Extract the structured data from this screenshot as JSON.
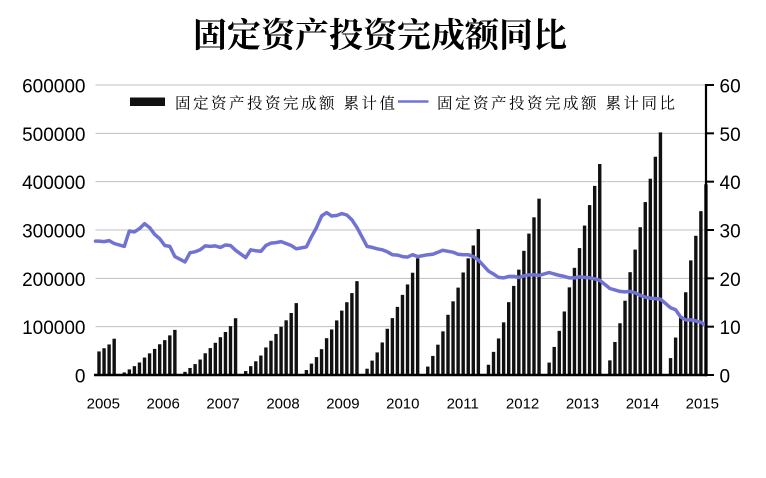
{
  "title": "固定资产投资完成额同比",
  "chart_data": {
    "type": "bar",
    "title": "固定资产投资完成额同比",
    "legend": [
      {
        "label": "固定资产投资完成额 累计值",
        "marker": "bar-swatch",
        "color": "#111111"
      },
      {
        "label": "固定资产投资完成额 累计同比",
        "marker": "line-swatch",
        "color": "#7173d2"
      }
    ],
    "left_axis": {
      "min": 0,
      "max": 600000,
      "step": 100000,
      "ticks": [
        "0",
        "100000",
        "200000",
        "300000",
        "400000",
        "500000",
        "600000"
      ]
    },
    "right_axis": {
      "min": 0,
      "max": 60,
      "step": 10,
      "ticks": [
        "0",
        "10",
        "20",
        "30",
        "40",
        "50",
        "60"
      ]
    },
    "x_tick_labels": [
      "2005",
      "2006",
      "2007",
      "2008",
      "2009",
      "2010",
      "2011",
      "2012",
      "2013",
      "2014",
      "2015"
    ],
    "grid": true,
    "colors": {
      "bar": "#111111",
      "line": "#7173d2",
      "gridline": "#c0c0c0",
      "axis": "#000000"
    },
    "monthly": [
      {
        "m": "2005-09",
        "value": 48741,
        "yoy": 27.7
      },
      {
        "m": "2005-10",
        "value": 55368,
        "yoy": 27.6
      },
      {
        "m": "2005-11",
        "value": 63196,
        "yoy": 27.8
      },
      {
        "m": "2005-12",
        "value": 75096,
        "yoy": 27.2
      },
      {
        "m": "2006-02",
        "value": 5294,
        "yoy": 26.6
      },
      {
        "m": "2006-03",
        "value": 11608,
        "yoy": 29.8
      },
      {
        "m": "2006-04",
        "value": 18317,
        "yoy": 29.6
      },
      {
        "m": "2006-05",
        "value": 25864,
        "yoy": 30.3
      },
      {
        "m": "2006-06",
        "value": 36135,
        "yoy": 31.3
      },
      {
        "m": "2006-07",
        "value": 44771,
        "yoy": 30.5
      },
      {
        "m": "2006-08",
        "value": 54027,
        "yoy": 29.1
      },
      {
        "m": "2006-09",
        "value": 63617,
        "yoy": 28.2
      },
      {
        "m": "2006-10",
        "value": 72109,
        "yoy": 26.8
      },
      {
        "m": "2006-11",
        "value": 81993,
        "yoy": 26.6
      },
      {
        "m": "2006-12",
        "value": 93369,
        "yoy": 24.5
      },
      {
        "m": "2007-02",
        "value": 6535,
        "yoy": 23.4
      },
      {
        "m": "2007-03",
        "value": 14544,
        "yoy": 25.3
      },
      {
        "m": "2007-04",
        "value": 22594,
        "yoy": 25.5
      },
      {
        "m": "2007-05",
        "value": 32045,
        "yoy": 25.9
      },
      {
        "m": "2007-06",
        "value": 44979,
        "yoy": 26.7
      },
      {
        "m": "2007-07",
        "value": 55684,
        "yoy": 26.6
      },
      {
        "m": "2007-08",
        "value": 66659,
        "yoy": 26.7
      },
      {
        "m": "2007-09",
        "value": 78247,
        "yoy": 26.4
      },
      {
        "m": "2007-10",
        "value": 88953,
        "yoy": 26.9
      },
      {
        "m": "2007-11",
        "value": 101148,
        "yoy": 26.8
      },
      {
        "m": "2007-12",
        "value": 117464,
        "yoy": 25.8
      },
      {
        "m": "2008-02",
        "value": 8121,
        "yoy": 24.3
      },
      {
        "m": "2008-03",
        "value": 18311,
        "yoy": 25.9
      },
      {
        "m": "2008-04",
        "value": 28401,
        "yoy": 25.7
      },
      {
        "m": "2008-05",
        "value": 40249,
        "yoy": 25.6
      },
      {
        "m": "2008-06",
        "value": 57033,
        "yoy": 26.8
      },
      {
        "m": "2008-07",
        "value": 70886,
        "yoy": 27.3
      },
      {
        "m": "2008-08",
        "value": 84924,
        "yoy": 27.4
      },
      {
        "m": "2008-09",
        "value": 99843,
        "yoy": 27.6
      },
      {
        "m": "2008-10",
        "value": 113148,
        "yoy": 27.2
      },
      {
        "m": "2008-11",
        "value": 128256,
        "yoy": 26.8
      },
      {
        "m": "2008-12",
        "value": 148738,
        "yoy": 26.1
      },
      {
        "m": "2009-02",
        "value": 10273,
        "yoy": 26.5
      },
      {
        "m": "2009-03",
        "value": 23548,
        "yoy": 28.6
      },
      {
        "m": "2009-04",
        "value": 37063,
        "yoy": 30.5
      },
      {
        "m": "2009-05",
        "value": 53491,
        "yoy": 32.9
      },
      {
        "m": "2009-06",
        "value": 76196,
        "yoy": 33.6
      },
      {
        "m": "2009-07",
        "value": 94208,
        "yoy": 32.9
      },
      {
        "m": "2009-08",
        "value": 112949,
        "yoy": 33.0
      },
      {
        "m": "2009-09",
        "value": 133191,
        "yoy": 33.4
      },
      {
        "m": "2009-10",
        "value": 150600,
        "yoy": 33.1
      },
      {
        "m": "2009-11",
        "value": 169426,
        "yoy": 32.1
      },
      {
        "m": "2009-12",
        "value": 194139,
        "yoy": 30.5
      },
      {
        "m": "2010-02",
        "value": 13006,
        "yoy": 26.6
      },
      {
        "m": "2010-03",
        "value": 29765,
        "yoy": 26.4
      },
      {
        "m": "2010-04",
        "value": 46736,
        "yoy": 26.1
      },
      {
        "m": "2010-05",
        "value": 67345,
        "yoy": 25.9
      },
      {
        "m": "2010-06",
        "value": 95626,
        "yoy": 25.5
      },
      {
        "m": "2010-07",
        "value": 117666,
        "yoy": 24.9
      },
      {
        "m": "2010-08",
        "value": 140960,
        "yoy": 24.8
      },
      {
        "m": "2010-09",
        "value": 165823,
        "yoy": 24.5
      },
      {
        "m": "2010-10",
        "value": 187346,
        "yoy": 24.4
      },
      {
        "m": "2010-11",
        "value": 211613,
        "yoy": 24.9
      },
      {
        "m": "2010-12",
        "value": 241415,
        "yoy": 24.5
      },
      {
        "m": "2011-02",
        "value": 17444,
        "yoy": 24.9
      },
      {
        "m": "2011-03",
        "value": 39465,
        "yoy": 25.0
      },
      {
        "m": "2011-04",
        "value": 62716,
        "yoy": 25.4
      },
      {
        "m": "2011-05",
        "value": 90255,
        "yoy": 25.8
      },
      {
        "m": "2011-06",
        "value": 124567,
        "yoy": 25.6
      },
      {
        "m": "2011-07",
        "value": 152420,
        "yoy": 25.4
      },
      {
        "m": "2011-08",
        "value": 180810,
        "yoy": 25.0
      },
      {
        "m": "2011-09",
        "value": 212107,
        "yoy": 24.9
      },
      {
        "m": "2011-10",
        "value": 241365,
        "yoy": 24.9
      },
      {
        "m": "2011-11",
        "value": 268021,
        "yoy": 24.5
      },
      {
        "m": "2011-12",
        "value": 301933,
        "yoy": 23.8
      },
      {
        "m": "2012-02",
        "value": 21189,
        "yoy": 21.5
      },
      {
        "m": "2012-03",
        "value": 47865,
        "yoy": 20.9
      },
      {
        "m": "2012-04",
        "value": 75592,
        "yoy": 20.2
      },
      {
        "m": "2012-05",
        "value": 108924,
        "yoy": 20.1
      },
      {
        "m": "2012-06",
        "value": 150710,
        "yoy": 20.4
      },
      {
        "m": "2012-07",
        "value": 184312,
        "yoy": 20.4
      },
      {
        "m": "2012-08",
        "value": 217958,
        "yoy": 20.2
      },
      {
        "m": "2012-09",
        "value": 256933,
        "yoy": 20.5
      },
      {
        "m": "2012-10",
        "value": 292542,
        "yoy": 20.7
      },
      {
        "m": "2012-11",
        "value": 326236,
        "yoy": 20.7
      },
      {
        "m": "2012-12",
        "value": 364835,
        "yoy": 20.6
      },
      {
        "m": "2013-02",
        "value": 25676,
        "yoy": 21.2
      },
      {
        "m": "2013-03",
        "value": 58092,
        "yoy": 20.9
      },
      {
        "m": "2013-04",
        "value": 91319,
        "yoy": 20.6
      },
      {
        "m": "2013-05",
        "value": 131435,
        "yoy": 20.4
      },
      {
        "m": "2013-06",
        "value": 181318,
        "yoy": 20.1
      },
      {
        "m": "2013-07",
        "value": 221722,
        "yoy": 20.1
      },
      {
        "m": "2013-08",
        "value": 262578,
        "yoy": 20.3
      },
      {
        "m": "2013-09",
        "value": 309208,
        "yoy": 20.2
      },
      {
        "m": "2013-10",
        "value": 351535,
        "yoy": 20.1
      },
      {
        "m": "2013-11",
        "value": 391283,
        "yoy": 19.9
      },
      {
        "m": "2013-12",
        "value": 436528,
        "yoy": 19.6
      },
      {
        "m": "2014-02",
        "value": 30283,
        "yoy": 17.9
      },
      {
        "m": "2014-03",
        "value": 68322,
        "yoy": 17.6
      },
      {
        "m": "2014-04",
        "value": 107078,
        "yoy": 17.3
      },
      {
        "m": "2014-05",
        "value": 153716,
        "yoy": 17.2
      },
      {
        "m": "2014-06",
        "value": 212770,
        "yoy": 17.3
      },
      {
        "m": "2014-07",
        "value": 259493,
        "yoy": 17.0
      },
      {
        "m": "2014-08",
        "value": 305786,
        "yoy": 16.5
      },
      {
        "m": "2014-09",
        "value": 357787,
        "yoy": 16.1
      },
      {
        "m": "2014-10",
        "value": 406161,
        "yoy": 15.9
      },
      {
        "m": "2014-11",
        "value": 451568,
        "yoy": 15.8
      },
      {
        "m": "2014-12",
        "value": 502005,
        "yoy": 15.7
      },
      {
        "m": "2015-02",
        "value": 34994,
        "yoy": 13.9
      },
      {
        "m": "2015-03",
        "value": 77511,
        "yoy": 13.5
      },
      {
        "m": "2015-04",
        "value": 119979,
        "yoy": 12.0
      },
      {
        "m": "2015-05",
        "value": 171245,
        "yoy": 11.4
      },
      {
        "m": "2015-06",
        "value": 237132,
        "yoy": 11.4
      },
      {
        "m": "2015-07",
        "value": 288069,
        "yoy": 11.2
      },
      {
        "m": "2015-08",
        "value": 338977,
        "yoy": 10.9
      },
      {
        "m": "2015-09",
        "value": 394531,
        "yoy": 10.3
      }
    ]
  }
}
